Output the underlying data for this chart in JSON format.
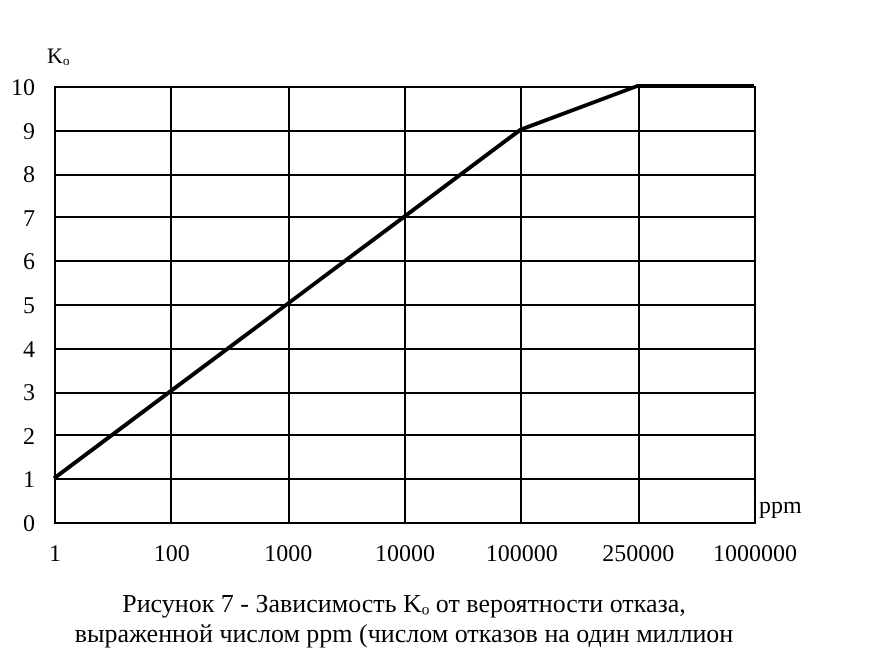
{
  "chart_data": {
    "type": "line",
    "categories": [
      "1",
      "100",
      "1000",
      "10000",
      "100000",
      "250000",
      "1000000"
    ],
    "values": [
      1,
      3,
      5,
      7,
      9,
      10,
      10
    ],
    "color": "#000000",
    "xlabel": "ppm",
    "ylabel": "Kₒ",
    "ylim": [
      0,
      10
    ],
    "yticks": [
      0,
      1,
      2,
      3,
      4,
      5,
      6,
      7,
      8,
      9,
      10
    ],
    "grid": true,
    "marker": "none",
    "line_style": "solid",
    "annotations": [
      "Рисунок 7 - Зависимость Kₒ от вероятности отказа,",
      "выраженной числом ppm (числом отказов на один миллион"
    ]
  }
}
